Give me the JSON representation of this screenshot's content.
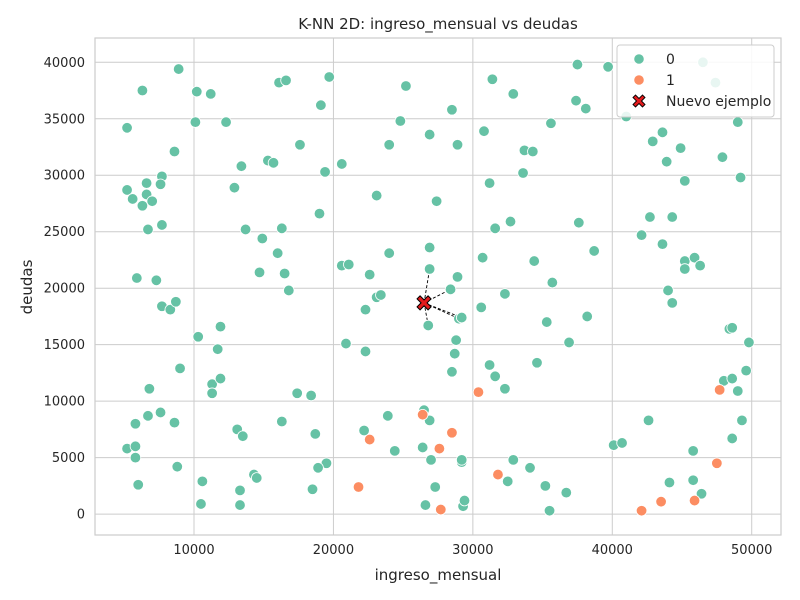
{
  "chart_data": {
    "type": "scatter",
    "title": "K-NN 2D: ingreso_mensual vs deudas",
    "xlabel": "ingreso_mensual",
    "ylabel": "deudas",
    "xlim": [
      2900,
      52100
    ],
    "ylim": [
      -1850,
      42150
    ],
    "xticks": [
      10000,
      20000,
      30000,
      40000,
      50000
    ],
    "yticks": [
      0,
      5000,
      10000,
      15000,
      20000,
      25000,
      30000,
      35000,
      40000
    ],
    "grid": true,
    "legend": {
      "position": "top-right",
      "entries": [
        {
          "label": "0",
          "color": "#66c2a5",
          "marker": "circle"
        },
        {
          "label": "1",
          "color": "#fc8d62",
          "marker": "circle"
        },
        {
          "label": "Nuevo ejemplo",
          "color": "#e31a1c",
          "marker": "x"
        }
      ]
    },
    "series": [
      {
        "name": "0",
        "color": "#66c2a5",
        "points": [
          [
            5200,
            34200
          ],
          [
            6300,
            37500
          ],
          [
            8900,
            39400
          ],
          [
            10200,
            37400
          ],
          [
            11200,
            37200
          ],
          [
            10100,
            34700
          ],
          [
            12300,
            34700
          ],
          [
            16100,
            38200
          ],
          [
            16600,
            38400
          ],
          [
            19700,
            38700
          ],
          [
            19100,
            36200
          ],
          [
            17600,
            32700
          ],
          [
            25200,
            37900
          ],
          [
            24800,
            34800
          ],
          [
            28500,
            35800
          ],
          [
            26900,
            33600
          ],
          [
            31400,
            38500
          ],
          [
            32900,
            37200
          ],
          [
            37500,
            39800
          ],
          [
            39700,
            39600
          ],
          [
            46500,
            40000
          ],
          [
            47400,
            38200
          ],
          [
            37400,
            36600
          ],
          [
            38100,
            35900
          ],
          [
            35600,
            34600
          ],
          [
            41000,
            35200
          ],
          [
            43600,
            33800
          ],
          [
            42900,
            33000
          ],
          [
            44900,
            32400
          ],
          [
            43900,
            31200
          ],
          [
            45200,
            29500
          ],
          [
            47900,
            31600
          ],
          [
            49200,
            29800
          ],
          [
            49000,
            34700
          ],
          [
            8600,
            32100
          ],
          [
            13400,
            30800
          ],
          [
            12900,
            28900
          ],
          [
            15300,
            31300
          ],
          [
            15700,
            31100
          ],
          [
            20600,
            31000
          ],
          [
            19400,
            30300
          ],
          [
            24000,
            32700
          ],
          [
            28900,
            32700
          ],
          [
            30800,
            33900
          ],
          [
            33700,
            32200
          ],
          [
            34300,
            32100
          ],
          [
            31200,
            29300
          ],
          [
            33600,
            30200
          ],
          [
            23100,
            28200
          ],
          [
            5200,
            28700
          ],
          [
            5600,
            27900
          ],
          [
            6300,
            27300
          ],
          [
            6600,
            28300
          ],
          [
            6600,
            29300
          ],
          [
            7700,
            29900
          ],
          [
            7600,
            29200
          ],
          [
            7000,
            27700
          ],
          [
            6700,
            25200
          ],
          [
            7700,
            25600
          ],
          [
            13700,
            25200
          ],
          [
            16300,
            25300
          ],
          [
            19000,
            26600
          ],
          [
            27400,
            27700
          ],
          [
            31600,
            25300
          ],
          [
            32700,
            25900
          ],
          [
            37600,
            25800
          ],
          [
            42100,
            24700
          ],
          [
            42700,
            26300
          ],
          [
            44300,
            26300
          ],
          [
            43600,
            23900
          ],
          [
            14900,
            24400
          ],
          [
            16000,
            23100
          ],
          [
            24000,
            23100
          ],
          [
            26900,
            23600
          ],
          [
            30700,
            22700
          ],
          [
            34400,
            22400
          ],
          [
            38700,
            23300
          ],
          [
            45200,
            22400
          ],
          [
            45900,
            22700
          ],
          [
            46300,
            22000
          ],
          [
            45200,
            21700
          ],
          [
            5900,
            20900
          ],
          [
            7300,
            20700
          ],
          [
            14700,
            21400
          ],
          [
            16500,
            21300
          ],
          [
            20600,
            22000
          ],
          [
            21100,
            22100
          ],
          [
            22600,
            21200
          ],
          [
            26900,
            21700
          ],
          [
            28900,
            21000
          ],
          [
            35700,
            20500
          ],
          [
            16800,
            19800
          ],
          [
            7700,
            18400
          ],
          [
            8300,
            18100
          ],
          [
            8700,
            18800
          ],
          [
            23100,
            19200
          ],
          [
            23400,
            19400
          ],
          [
            28400,
            19900
          ],
          [
            32300,
            19500
          ],
          [
            44000,
            19800
          ],
          [
            44300,
            18700
          ],
          [
            22300,
            18100
          ],
          [
            29000,
            17300
          ],
          [
            29200,
            17400
          ],
          [
            30600,
            18300
          ],
          [
            26800,
            16700
          ],
          [
            35300,
            17000
          ],
          [
            38200,
            17500
          ],
          [
            48400,
            16400
          ],
          [
            48600,
            16500
          ],
          [
            49800,
            15200
          ],
          [
            11900,
            16600
          ],
          [
            10300,
            15700
          ],
          [
            11700,
            14600
          ],
          [
            20900,
            15100
          ],
          [
            22300,
            14400
          ],
          [
            28800,
            15400
          ],
          [
            28700,
            14200
          ],
          [
            36900,
            15200
          ],
          [
            9000,
            12900
          ],
          [
            28500,
            12600
          ],
          [
            31200,
            13200
          ],
          [
            31600,
            12200
          ],
          [
            34600,
            13400
          ],
          [
            48000,
            11800
          ],
          [
            48600,
            12000
          ],
          [
            49600,
            12700
          ],
          [
            11300,
            11500
          ],
          [
            11900,
            12000
          ],
          [
            11300,
            10700
          ],
          [
            6800,
            11100
          ],
          [
            17400,
            10700
          ],
          [
            18400,
            10500
          ],
          [
            32300,
            11100
          ],
          [
            49000,
            10900
          ],
          [
            5800,
            8000
          ],
          [
            6700,
            8700
          ],
          [
            7600,
            9000
          ],
          [
            8600,
            8100
          ],
          [
            13100,
            7500
          ],
          [
            13500,
            6900
          ],
          [
            16300,
            8200
          ],
          [
            18700,
            7100
          ],
          [
            22200,
            7400
          ],
          [
            23900,
            8700
          ],
          [
            26500,
            9200
          ],
          [
            26900,
            8300
          ],
          [
            42600,
            8300
          ],
          [
            49300,
            8300
          ],
          [
            48600,
            6700
          ],
          [
            5200,
            5800
          ],
          [
            5800,
            6000
          ],
          [
            5800,
            5000
          ],
          [
            8800,
            4200
          ],
          [
            19500,
            4500
          ],
          [
            18900,
            4100
          ],
          [
            24400,
            5600
          ],
          [
            26400,
            5900
          ],
          [
            27000,
            4800
          ],
          [
            29200,
            4600
          ],
          [
            29200,
            4800
          ],
          [
            32900,
            4800
          ],
          [
            34100,
            4100
          ],
          [
            40100,
            6100
          ],
          [
            40700,
            6300
          ],
          [
            45800,
            5600
          ],
          [
            6000,
            2600
          ],
          [
            10600,
            2900
          ],
          [
            13300,
            2100
          ],
          [
            14300,
            3500
          ],
          [
            14500,
            3200
          ],
          [
            18500,
            2200
          ],
          [
            27300,
            2400
          ],
          [
            32500,
            2900
          ],
          [
            35200,
            2500
          ],
          [
            36700,
            1900
          ],
          [
            44100,
            2800
          ],
          [
            45800,
            3000
          ],
          [
            46400,
            1800
          ],
          [
            10500,
            900
          ],
          [
            13300,
            800
          ],
          [
            26600,
            800
          ],
          [
            29300,
            700
          ],
          [
            29400,
            1200
          ],
          [
            35500,
            300
          ]
        ]
      },
      {
        "name": "1",
        "color": "#fc8d62",
        "points": [
          [
            47700,
            11000
          ],
          [
            30400,
            10800
          ],
          [
            26400,
            8800
          ],
          [
            22600,
            6600
          ],
          [
            27600,
            5800
          ],
          [
            28500,
            7200
          ],
          [
            21800,
            2400
          ],
          [
            31800,
            3500
          ],
          [
            47500,
            4500
          ],
          [
            27700,
            400
          ],
          [
            42100,
            300
          ],
          [
            43500,
            1100
          ],
          [
            45900,
            1200
          ]
        ]
      }
    ],
    "new_example": {
      "label": "Nuevo ejemplo",
      "point": [
        26500,
        18700
      ],
      "color": "#e31a1c",
      "neighbors": [
        [
          26900,
          21700
        ],
        [
          28400,
          19900
        ],
        [
          29000,
          17300
        ],
        [
          29200,
          17400
        ],
        [
          26800,
          16700
        ]
      ]
    }
  }
}
